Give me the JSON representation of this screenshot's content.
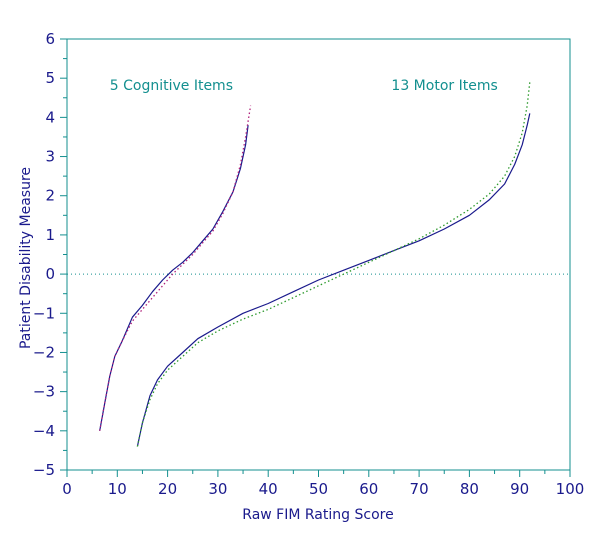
{
  "chart_data": {
    "type": "line",
    "title": "",
    "xlabel": "Raw FIM Rating Score",
    "ylabel": "Patient Disability Measure",
    "xlim": [
      0,
      100
    ],
    "ylim": [
      -5,
      6
    ],
    "x_ticks": [
      0,
      10,
      20,
      30,
      40,
      50,
      60,
      70,
      80,
      90,
      100
    ],
    "y_ticks": [
      -5,
      -4,
      -3,
      -2,
      -1,
      0,
      1,
      2,
      3,
      4,
      5,
      6
    ],
    "grid": false,
    "reference_line": {
      "y": 0,
      "style": "dotted"
    },
    "annotations": [
      {
        "text": "5 Cognitive Items",
        "x": 8.5,
        "y": 4.7
      },
      {
        "text": "13 Motor Items",
        "x": 64.5,
        "y": 4.7
      }
    ],
    "series": [
      {
        "group": "cognitive",
        "style": "solid",
        "color": "#1a1a8c",
        "points": [
          [
            6.5,
            -4.0
          ],
          [
            7.5,
            -3.3
          ],
          [
            8.5,
            -2.6
          ],
          [
            9.5,
            -2.1
          ],
          [
            11,
            -1.7
          ],
          [
            13,
            -1.1
          ],
          [
            15,
            -0.8
          ],
          [
            17,
            -0.45
          ],
          [
            19,
            -0.15
          ],
          [
            21,
            0.1
          ],
          [
            23,
            0.3
          ],
          [
            25,
            0.55
          ],
          [
            27,
            0.85
          ],
          [
            29,
            1.15
          ],
          [
            31,
            1.6
          ],
          [
            33,
            2.1
          ],
          [
            34.5,
            2.7
          ],
          [
            35.5,
            3.3
          ],
          [
            36,
            3.8
          ]
        ]
      },
      {
        "group": "cognitive",
        "style": "dotted",
        "color": "#b0207a",
        "points": [
          [
            6.5,
            -4.0
          ],
          [
            7.5,
            -3.3
          ],
          [
            8.5,
            -2.6
          ],
          [
            9.5,
            -2.1
          ],
          [
            11,
            -1.7
          ],
          [
            13,
            -1.2
          ],
          [
            15,
            -0.9
          ],
          [
            17,
            -0.6
          ],
          [
            19,
            -0.3
          ],
          [
            21,
            0.0
          ],
          [
            23,
            0.25
          ],
          [
            25,
            0.5
          ],
          [
            27,
            0.8
          ],
          [
            29,
            1.1
          ],
          [
            31,
            1.55
          ],
          [
            33,
            2.1
          ],
          [
            34.5,
            2.8
          ],
          [
            35.5,
            3.5
          ],
          [
            36.5,
            4.3
          ]
        ]
      },
      {
        "group": "motor",
        "style": "solid",
        "color": "#1a1a8c",
        "points": [
          [
            14,
            -4.4
          ],
          [
            15,
            -3.8
          ],
          [
            16.5,
            -3.1
          ],
          [
            18,
            -2.7
          ],
          [
            20,
            -2.35
          ],
          [
            23,
            -2.0
          ],
          [
            26,
            -1.65
          ],
          [
            30,
            -1.35
          ],
          [
            35,
            -1.0
          ],
          [
            40,
            -0.75
          ],
          [
            45,
            -0.45
          ],
          [
            50,
            -0.15
          ],
          [
            55,
            0.1
          ],
          [
            60,
            0.35
          ],
          [
            65,
            0.6
          ],
          [
            70,
            0.85
          ],
          [
            75,
            1.15
          ],
          [
            80,
            1.5
          ],
          [
            84,
            1.9
          ],
          [
            87,
            2.3
          ],
          [
            89,
            2.8
          ],
          [
            90.5,
            3.3
          ],
          [
            91.5,
            3.8
          ],
          [
            92,
            4.1
          ]
        ]
      },
      {
        "group": "motor",
        "style": "dotted",
        "color": "#2e9a2e",
        "points": [
          [
            14,
            -4.4
          ],
          [
            15,
            -3.8
          ],
          [
            16.5,
            -3.2
          ],
          [
            18,
            -2.8
          ],
          [
            20,
            -2.45
          ],
          [
            23,
            -2.1
          ],
          [
            26,
            -1.75
          ],
          [
            30,
            -1.45
          ],
          [
            35,
            -1.15
          ],
          [
            40,
            -0.9
          ],
          [
            45,
            -0.6
          ],
          [
            50,
            -0.3
          ],
          [
            55,
            0.0
          ],
          [
            60,
            0.3
          ],
          [
            65,
            0.6
          ],
          [
            70,
            0.9
          ],
          [
            75,
            1.25
          ],
          [
            80,
            1.65
          ],
          [
            84,
            2.05
          ],
          [
            87,
            2.5
          ],
          [
            89,
            3.0
          ],
          [
            90.5,
            3.6
          ],
          [
            91.5,
            4.3
          ],
          [
            92,
            4.9
          ]
        ]
      }
    ]
  }
}
